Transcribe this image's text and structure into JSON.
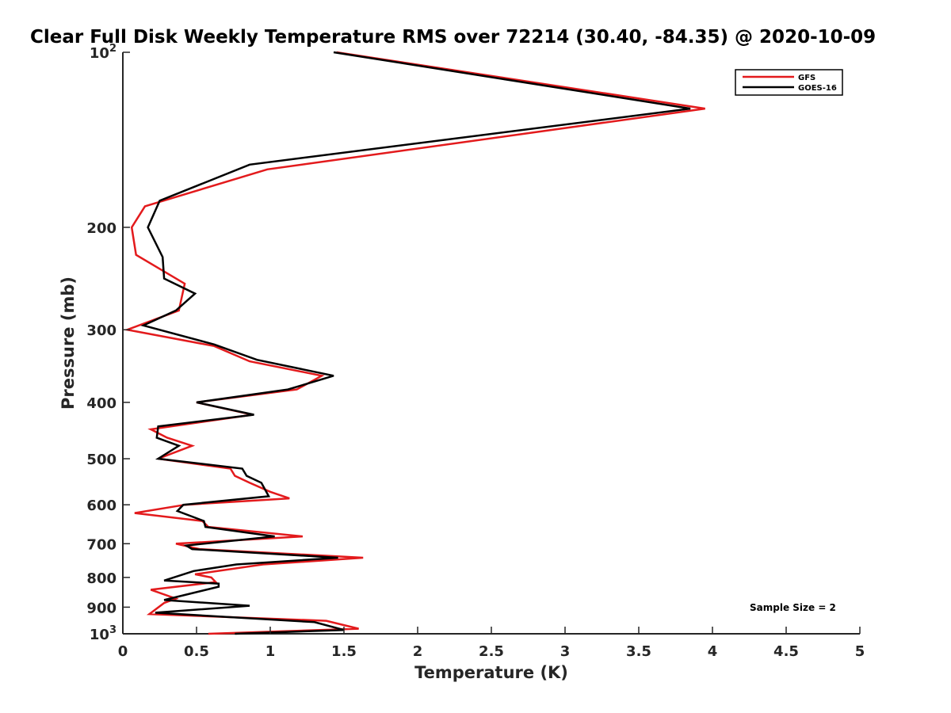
{
  "chart_data": {
    "type": "line",
    "title": "Clear Full Disk Weekly Temperature RMS over 72214 (30.40, -84.35) @ 2020-10-09",
    "xlabel": "Temperature (K)",
    "ylabel": "Pressure (mb)",
    "xlim": [
      0,
      5
    ],
    "ylim": [
      1000,
      100
    ],
    "y_scale": "log",
    "y_reversed": true,
    "grid": false,
    "legend_position": "top-right",
    "x_ticks": [
      "0",
      "0.5",
      "1",
      "1.5",
      "2",
      "2.5",
      "3",
      "3.5",
      "4",
      "4.5",
      "5"
    ],
    "y_ticks": [
      {
        "value": 100,
        "base": "10",
        "exp": "2"
      },
      {
        "value": 200,
        "label": "200"
      },
      {
        "value": 300,
        "label": "300"
      },
      {
        "value": 400,
        "label": "400"
      },
      {
        "value": 500,
        "label": "500"
      },
      {
        "value": 600,
        "label": "600"
      },
      {
        "value": 700,
        "label": "700"
      },
      {
        "value": 800,
        "label": "800"
      },
      {
        "value": 900,
        "label": "900"
      },
      {
        "value": 1000,
        "base": "10",
        "exp": "3"
      }
    ],
    "annotation": "Sample Size = 2",
    "series": [
      {
        "name": "GFS",
        "color": "#e31a1c",
        "points": [
          [
            1.45,
            100
          ],
          [
            3.95,
            125
          ],
          [
            0.98,
            159
          ],
          [
            0.15,
            184
          ],
          [
            0.06,
            200
          ],
          [
            0.09,
            223
          ],
          [
            0.42,
            250
          ],
          [
            0.38,
            278
          ],
          [
            0.03,
            300
          ],
          [
            0.62,
            320
          ],
          [
            0.86,
            340
          ],
          [
            1.35,
            360
          ],
          [
            1.18,
            380
          ],
          [
            0.5,
            400
          ],
          [
            0.88,
            420
          ],
          [
            0.19,
            445
          ],
          [
            0.3,
            460
          ],
          [
            0.47,
            475
          ],
          [
            0.24,
            500
          ],
          [
            0.73,
            520
          ],
          [
            0.76,
            535
          ],
          [
            0.86,
            550
          ],
          [
            1.0,
            570
          ],
          [
            1.13,
            585
          ],
          [
            0.42,
            600
          ],
          [
            0.08,
            620
          ],
          [
            0.54,
            640
          ],
          [
            0.58,
            655
          ],
          [
            1.22,
            680
          ],
          [
            0.36,
            700
          ],
          [
            0.52,
            715
          ],
          [
            1.63,
            740
          ],
          [
            0.95,
            760
          ],
          [
            0.49,
            790
          ],
          [
            0.6,
            800
          ],
          [
            0.63,
            815
          ],
          [
            0.19,
            840
          ],
          [
            0.36,
            870
          ],
          [
            0.28,
            885
          ],
          [
            0.18,
            925
          ],
          [
            1.38,
            950
          ],
          [
            1.6,
            980
          ],
          [
            0.58,
            1000
          ]
        ]
      },
      {
        "name": "GOES-16",
        "color": "#000000",
        "points": [
          [
            1.43,
            100
          ],
          [
            3.85,
            125
          ],
          [
            0.86,
            156
          ],
          [
            0.25,
            180
          ],
          [
            0.17,
            200
          ],
          [
            0.27,
            225
          ],
          [
            0.28,
            245
          ],
          [
            0.49,
            260
          ],
          [
            0.36,
            278
          ],
          [
            0.14,
            295
          ],
          [
            0.62,
            318
          ],
          [
            0.91,
            338
          ],
          [
            1.43,
            360
          ],
          [
            1.12,
            380
          ],
          [
            0.5,
            400
          ],
          [
            0.89,
            420
          ],
          [
            0.24,
            440
          ],
          [
            0.23,
            460
          ],
          [
            0.38,
            475
          ],
          [
            0.24,
            500
          ],
          [
            0.81,
            520
          ],
          [
            0.84,
            535
          ],
          [
            0.94,
            550
          ],
          [
            0.99,
            580
          ],
          [
            0.41,
            600
          ],
          [
            0.37,
            615
          ],
          [
            0.55,
            640
          ],
          [
            0.56,
            655
          ],
          [
            1.03,
            680
          ],
          [
            0.43,
            705
          ],
          [
            0.47,
            715
          ],
          [
            1.46,
            740
          ],
          [
            0.77,
            760
          ],
          [
            0.48,
            780
          ],
          [
            0.28,
            810
          ],
          [
            0.65,
            820
          ],
          [
            0.65,
            830
          ],
          [
            0.28,
            875
          ],
          [
            0.86,
            895
          ],
          [
            0.22,
            920
          ],
          [
            1.3,
            955
          ],
          [
            1.5,
            985
          ],
          [
            0.76,
            1000
          ]
        ]
      }
    ]
  }
}
